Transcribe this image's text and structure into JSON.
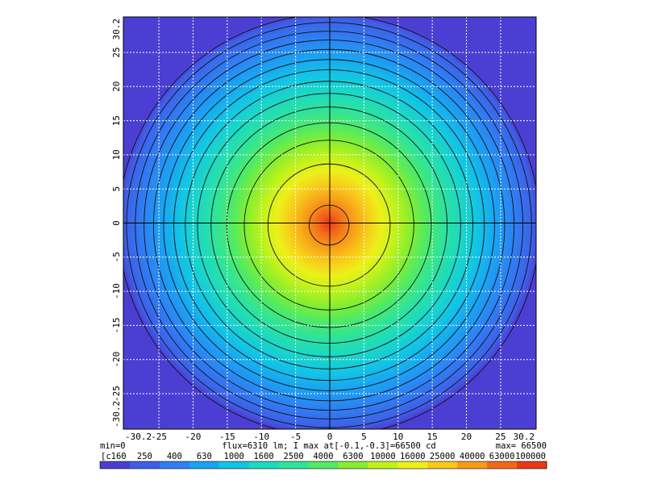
{
  "chart_data": {
    "type": "heatmap",
    "title": "",
    "xlabel": "",
    "ylabel": "",
    "xlim": [
      -30.2,
      30.2
    ],
    "ylim": [
      -30.2,
      30.2
    ],
    "x_ticks": [
      "-30.2",
      "-25",
      "-20",
      "-15",
      "-10",
      "-5",
      "0",
      "5",
      "10",
      "15",
      "20",
      "25",
      "30.2"
    ],
    "y_ticks": [
      "30.2",
      "25",
      "20",
      "15",
      "10",
      "5",
      "0",
      "-5",
      "-10",
      "-15",
      "-20",
      "-25",
      "-30.2"
    ],
    "tick_values": [
      -30.2,
      -25,
      -20,
      -15,
      -10,
      -5,
      0,
      5,
      10,
      15,
      20,
      25,
      30.2
    ],
    "grid": true,
    "peak": {
      "x": -0.1,
      "y": -0.3,
      "value": 66500
    },
    "contour_levels": [
      160,
      250,
      400,
      630,
      1000,
      1600,
      2500,
      4000,
      6300,
      10000,
      16000,
      25000,
      40000,
      63000,
      100000
    ],
    "min_label": "min=0",
    "max_label": "max= 66500",
    "flux_label": "flux=6310 lm; I max at[-0.1,-0.3]=66500 cd",
    "colorbar": {
      "labels": [
        "[c160",
        "250",
        "400",
        "630",
        "1000",
        "1600",
        "2500",
        "4000",
        "6300",
        "10000",
        "16000",
        "25000",
        "40000",
        "63000",
        "100000"
      ],
      "colors": [
        "#4b3fd3",
        "#3f5ee6",
        "#2f7ff3",
        "#1aa3f2",
        "#12c4e6",
        "#1cd9c2",
        "#2fe39a",
        "#52ea63",
        "#86ee2f",
        "#bff21c",
        "#edf01a",
        "#f8c81a",
        "#f79a1a",
        "#f2681a",
        "#e83818"
      ]
    }
  }
}
